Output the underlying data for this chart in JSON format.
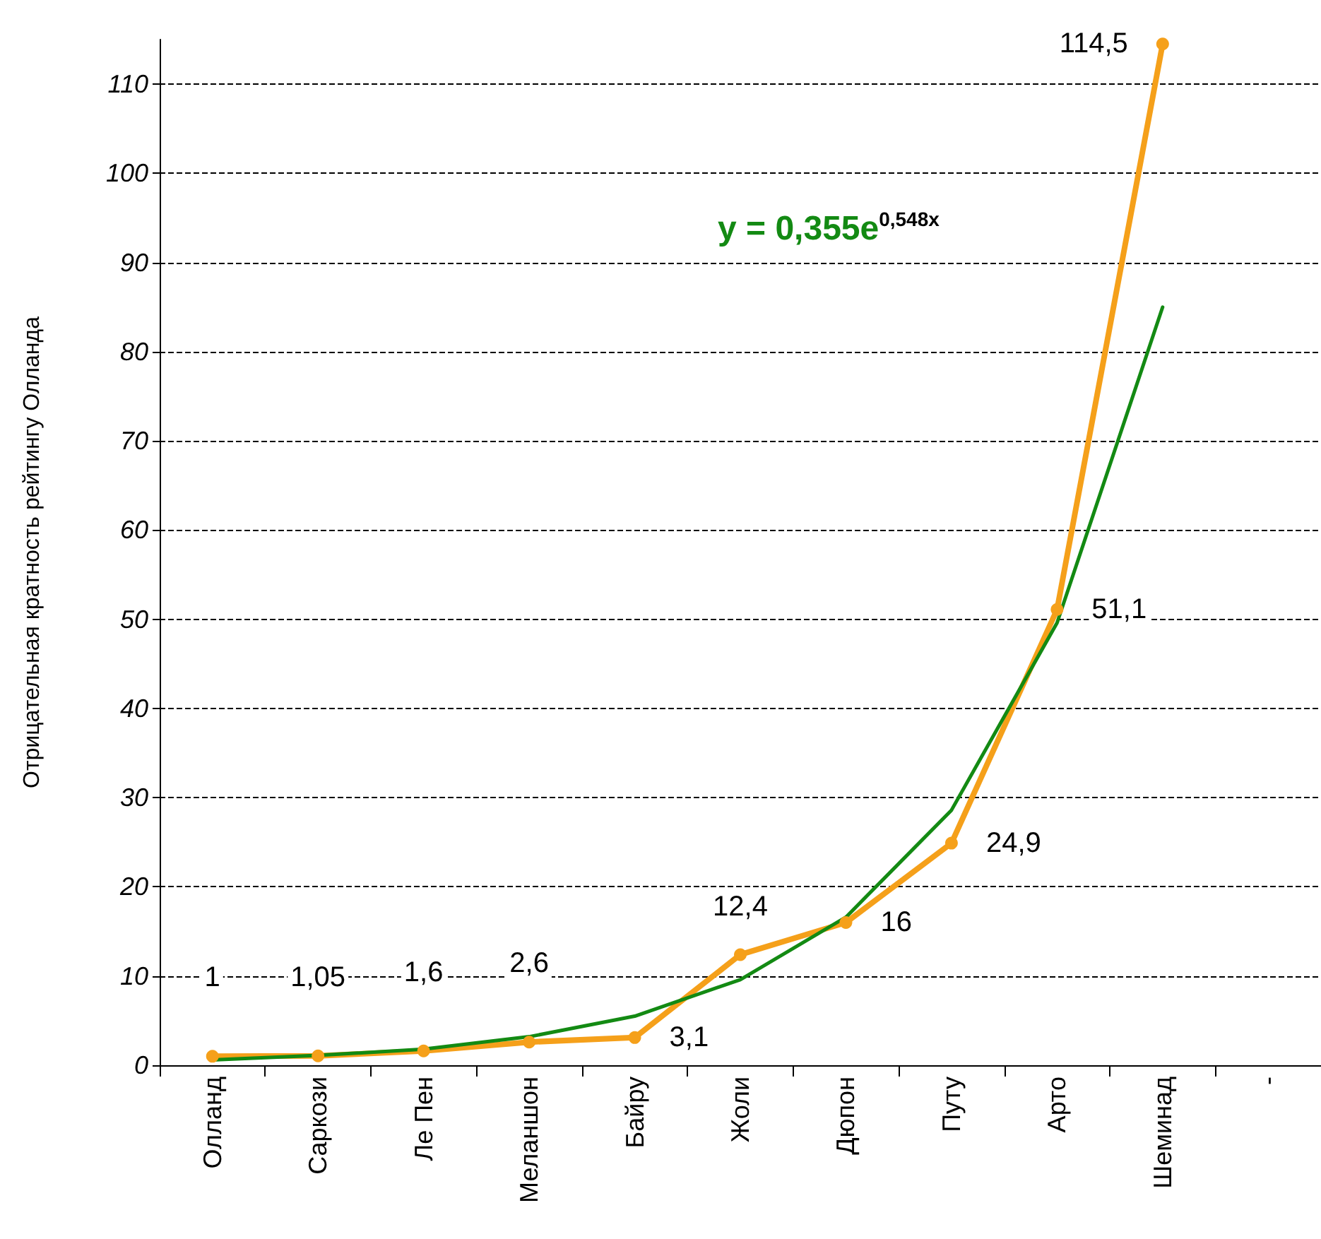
{
  "chart_data": {
    "type": "line",
    "ylabel": "Отрицательная кратность рейтингу Олланда",
    "categories": [
      "Олланд",
      "Саркози",
      "Ле Пен",
      "Меланшон",
      "Байру",
      "Жоли",
      "Дюпон",
      "Путу",
      "Арто",
      "Шеминад",
      "-"
    ],
    "series": [
      {
        "color": "#f5a01a",
        "values": [
          1,
          1.05,
          1.6,
          2.6,
          3.1,
          12.4,
          16,
          24.9,
          51.1,
          114.5,
          null
        ],
        "value_labels": [
          "1",
          "1,05",
          "1,6",
          "2,6",
          "3,1",
          "12,4",
          "16",
          "24,9",
          "51,1",
          "114,5",
          null
        ],
        "marker": "circle"
      },
      {
        "color": "#138a13",
        "values": [
          0.6,
          1.1,
          1.8,
          3.2,
          5.5,
          9.6,
          16.6,
          28.6,
          49.6,
          85,
          null
        ],
        "marker": "none"
      }
    ],
    "annotations": [
      "y = 0,355e$^{0,548x}$"
    ],
    "ylim": [
      0,
      115
    ],
    "yticks": [
      0,
      10,
      20,
      30,
      40,
      50,
      60,
      70,
      80,
      90,
      100,
      110
    ],
    "grid": "y",
    "line_style": "solid"
  }
}
